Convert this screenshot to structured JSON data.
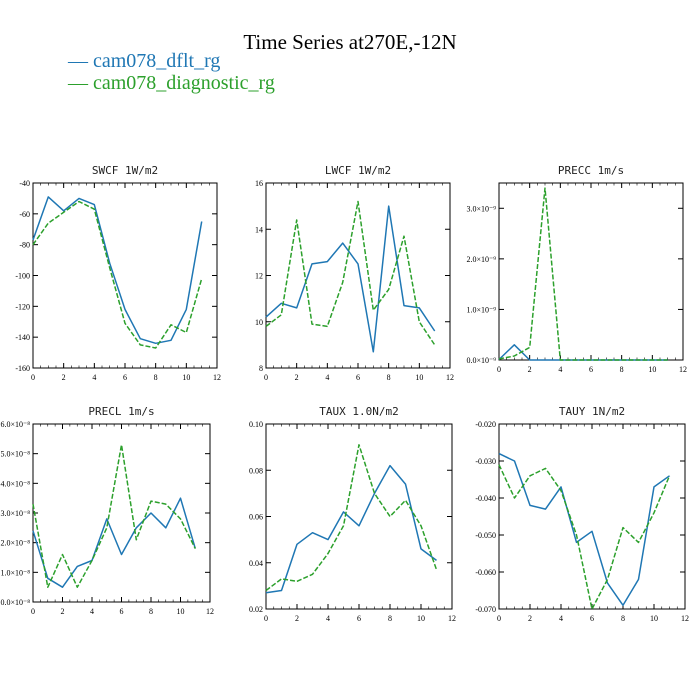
{
  "title": "Time Series at270E,-12N",
  "colors": {
    "dflt": "#1f77b4",
    "diagnostic": "#2ca02c"
  },
  "legend": [
    {
      "label": "cam078_dflt_rg",
      "color": "#1f77b4",
      "dash": "solid"
    },
    {
      "label": "cam078_diagnostic_rg",
      "color": "#2ca02c",
      "dash": "dashed"
    }
  ],
  "chart_data": [
    {
      "type": "line",
      "title": "SWCF   1W/m2",
      "x": [
        0,
        1,
        2,
        3,
        4,
        5,
        6,
        7,
        8,
        9,
        10,
        11
      ],
      "xlim": [
        0,
        12
      ],
      "xticks": [
        "0",
        "2",
        "4",
        "6",
        "8",
        "10",
        "12"
      ],
      "ylim": [
        -160,
        -40
      ],
      "yticks": [
        "-160",
        "-140",
        "-120",
        "-100",
        "-80",
        "-60",
        "-40"
      ],
      "series": [
        {
          "name": "cam078_dflt_rg",
          "values": [
            -77,
            -49,
            -58,
            -50,
            -54,
            -92,
            -122,
            -141,
            -144,
            -142,
            -122,
            -65
          ]
        },
        {
          "name": "cam078_diagnostic_rg",
          "values": [
            -80,
            -66,
            -59,
            -52,
            -57,
            -95,
            -131,
            -145,
            -147,
            -132,
            -137,
            -102
          ]
        }
      ]
    },
    {
      "type": "line",
      "title": "LWCF   1W/m2",
      "x": [
        0,
        1,
        2,
        3,
        4,
        5,
        6,
        7,
        8,
        9,
        10,
        11
      ],
      "xlim": [
        0,
        12
      ],
      "xticks": [
        "0",
        "2",
        "4",
        "6",
        "8",
        "10",
        "12"
      ],
      "ylim": [
        8,
        16
      ],
      "yticks": [
        "8",
        "10",
        "12",
        "14",
        "16"
      ],
      "series": [
        {
          "name": "cam078_dflt_rg",
          "values": [
            10.2,
            10.8,
            10.6,
            12.5,
            12.6,
            13.4,
            12.5,
            8.7,
            15.0,
            10.7,
            10.6,
            9.6
          ]
        },
        {
          "name": "cam078_diagnostic_rg",
          "values": [
            9.8,
            10.3,
            14.4,
            9.9,
            9.8,
            11.7,
            15.2,
            10.5,
            11.4,
            13.7,
            10.0,
            9.0
          ]
        }
      ]
    },
    {
      "type": "line",
      "title": "PRECC   1m/s",
      "x": [
        0,
        1,
        2,
        3,
        4,
        5,
        6,
        7,
        8,
        9,
        10,
        11
      ],
      "xlim": [
        0,
        12
      ],
      "xticks": [
        "0",
        "2",
        "4",
        "6",
        "8",
        "10",
        "12"
      ],
      "ylim": [
        0,
        3.5e-09
      ],
      "ytick_values": [
        0,
        1e-09,
        2e-09,
        3e-09
      ],
      "yticks": [
        "0.0×10⁻⁹",
        "1.0×10⁻⁹",
        "2.0×10⁻⁹",
        "3.0×10⁻⁹"
      ],
      "series": [
        {
          "name": "cam078_dflt_rg",
          "values": [
            1e-11,
            3e-10,
            0,
            0,
            0,
            0,
            0,
            0,
            0,
            0,
            0,
            0
          ]
        },
        {
          "name": "cam078_diagnostic_rg",
          "values": [
            2e-11,
            8e-11,
            2.5e-10,
            3.4e-09,
            0,
            0,
            0,
            0,
            0,
            0,
            0,
            0
          ]
        }
      ]
    },
    {
      "type": "line",
      "title": "PRECL   1m/s",
      "x": [
        0,
        1,
        2,
        3,
        4,
        5,
        6,
        7,
        8,
        9,
        10,
        11
      ],
      "xlim": [
        0,
        12
      ],
      "xticks": [
        "0",
        "2",
        "4",
        "6",
        "8",
        "10",
        "12"
      ],
      "ylim": [
        0,
        6
      ],
      "yticks": [
        "0.0×10⁻⁸",
        "1.0×10⁻⁸",
        "2.0×10⁻⁸",
        "3.0×10⁻⁸",
        "4.0×10⁻⁸",
        "5.0×10⁻⁸",
        "6.0×10⁻⁸"
      ],
      "series": [
        {
          "name": "cam078_dflt_rg",
          "values": [
            2.4,
            0.8,
            0.5,
            1.2,
            1.4,
            2.8,
            1.6,
            2.5,
            3.0,
            2.5,
            3.5,
            1.8
          ]
        },
        {
          "name": "cam078_diagnostic_rg",
          "values": [
            3.3,
            0.5,
            1.6,
            0.5,
            1.4,
            2.5,
            5.3,
            2.1,
            3.4,
            3.3,
            2.8,
            1.8
          ]
        }
      ]
    },
    {
      "type": "line",
      "title": "TAUX   1.0N/m2",
      "x": [
        0,
        1,
        2,
        3,
        4,
        5,
        6,
        7,
        8,
        9,
        10,
        11
      ],
      "xlim": [
        0,
        12
      ],
      "xticks": [
        "0",
        "2",
        "4",
        "6",
        "8",
        "10",
        "12"
      ],
      "ylim": [
        0.02,
        0.1
      ],
      "yticks": [
        "0.02",
        "0.04",
        "0.06",
        "0.08",
        "0.10"
      ],
      "series": [
        {
          "name": "cam078_dflt_rg",
          "values": [
            0.027,
            0.028,
            0.048,
            0.053,
            0.05,
            0.062,
            0.056,
            0.07,
            0.082,
            0.074,
            0.046,
            0.041
          ]
        },
        {
          "name": "cam078_diagnostic_rg",
          "values": [
            0.028,
            0.033,
            0.032,
            0.035,
            0.044,
            0.056,
            0.091,
            0.07,
            0.06,
            0.067,
            0.056,
            0.037
          ]
        }
      ]
    },
    {
      "type": "line",
      "title": "TAUY   1N/m2",
      "x": [
        0,
        1,
        2,
        3,
        4,
        5,
        6,
        7,
        8,
        9,
        10,
        11
      ],
      "xlim": [
        0,
        12
      ],
      "xticks": [
        "0",
        "2",
        "4",
        "6",
        "8",
        "10",
        "12"
      ],
      "ylim": [
        -0.07,
        -0.02
      ],
      "yticks": [
        "-0.070",
        "-0.060",
        "-0.050",
        "-0.040",
        "-0.030",
        "-0.020"
      ],
      "series": [
        {
          "name": "cam078_dflt_rg",
          "values": [
            -0.028,
            -0.03,
            -0.042,
            -0.043,
            -0.037,
            -0.052,
            -0.049,
            -0.063,
            -0.069,
            -0.062,
            -0.037,
            -0.034
          ]
        },
        {
          "name": "cam078_diagnostic_rg",
          "values": [
            -0.031,
            -0.04,
            -0.034,
            -0.032,
            -0.038,
            -0.05,
            -0.07,
            -0.062,
            -0.048,
            -0.052,
            -0.044,
            -0.034
          ]
        }
      ]
    }
  ]
}
